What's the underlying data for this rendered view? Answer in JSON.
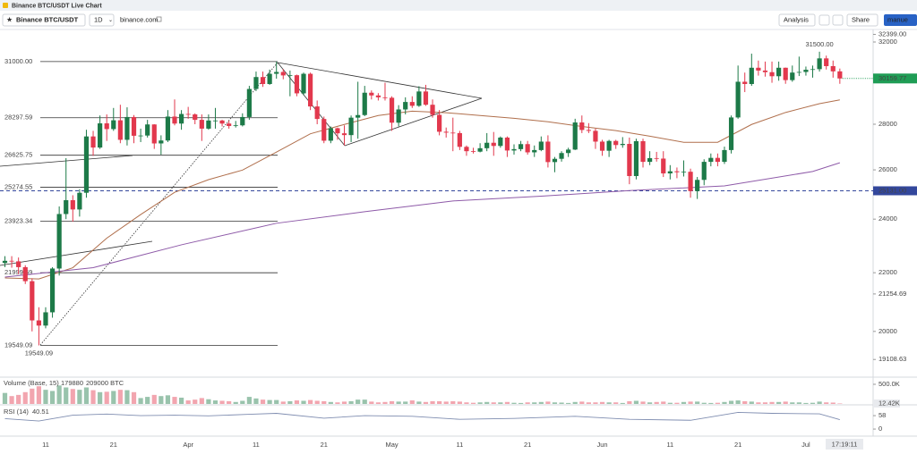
{
  "window_title": "Binance BTC/USDT Live Chart",
  "toolbar": {
    "symbol": "Binance BTC/USDT",
    "interval": "1D",
    "source": "binance.com",
    "analysis": "Analysis",
    "share": "Share",
    "user": "manue"
  },
  "chart_data": {
    "type": "candlestick",
    "categories": [
      null,
      null,
      null,
      null,
      null,
      null,
      "11",
      null,
      null,
      null,
      null,
      null,
      null,
      null,
      null,
      null,
      "21",
      null,
      null,
      null,
      null,
      null,
      null,
      null,
      null,
      null,
      null,
      "Apr",
      null,
      null,
      null,
      null,
      null,
      null,
      null,
      null,
      null,
      "11",
      null,
      null,
      null,
      null,
      null,
      null,
      null,
      null,
      null,
      "21",
      null,
      null,
      null,
      null,
      null,
      null,
      null,
      null,
      null,
      "May",
      null,
      null,
      null,
      null,
      null,
      null,
      null,
      null,
      null,
      "11",
      null,
      null,
      null,
      null,
      null,
      null,
      null,
      null,
      null,
      "21",
      null,
      null,
      null,
      null,
      null,
      null,
      null,
      null,
      null,
      null,
      "Jun",
      null,
      null,
      null,
      null,
      null,
      null,
      null,
      null,
      null,
      "11",
      null,
      null,
      null,
      null,
      null,
      null,
      null,
      null,
      null,
      "21",
      null,
      null,
      null,
      null,
      null,
      null,
      null,
      null,
      null,
      "Jul",
      null,
      null,
      null,
      null,
      null
    ],
    "open": [
      22350,
      22430,
      22410,
      22200,
      21700,
      20360,
      20190,
      20630,
      22150,
      24200,
      24750,
      24380,
      25050,
      27450,
      26960,
      28040,
      27780,
      28180,
      27300,
      28330,
      27480,
      27490,
      27990,
      27140,
      27270,
      28350,
      28030,
      28470,
      28450,
      28200,
      27800,
      28170,
      28170,
      28030,
      27920,
      27950,
      28330,
      29650,
      30230,
      29890,
      30390,
      30480,
      30310,
      30320,
      29440,
      30390,
      28820,
      28240,
      27260,
      27820,
      27590,
      27510,
      28300,
      28420,
      29470,
      29340,
      29250,
      29230,
      28070,
      28680,
      29030,
      28850,
      29530,
      28900,
      28430,
      27660,
      27620,
      27600,
      26990,
      26800,
      26780,
      26930,
      27170,
      27030,
      27400,
      26830,
      26890,
      27110,
      26750,
      26850,
      27220,
      26330,
      26470,
      26720,
      26870,
      28080,
      27740,
      27700,
      27220,
      26820,
      27250,
      27070,
      27120,
      25740,
      27240,
      26340,
      26500,
      26480,
      25850,
      25940,
      25900,
      25920,
      25120,
      25580,
      26340,
      26510,
      26340,
      26850,
      28310,
      30000,
      29890,
      30690,
      30550,
      30470,
      30270,
      30690,
      30080,
      30450,
      30480,
      30590,
      30620,
      31160,
      30770,
      30510
    ],
    "high": [
      22600,
      22600,
      22550,
      22270,
      21800,
      20800,
      20800,
      22200,
      24500,
      26500,
      24950,
      25200,
      27750,
      27700,
      28400,
      28450,
      28750,
      28900,
      28780,
      28420,
      27800,
      28200,
      28000,
      27500,
      28650,
      29150,
      28650,
      28800,
      28500,
      28450,
      28450,
      28750,
      28200,
      28150,
      28150,
      28500,
      29800,
      30500,
      30500,
      30600,
      31000,
      30620,
      30550,
      30350,
      30450,
      30450,
      29100,
      28350,
      27900,
      27850,
      27950,
      28400,
      30000,
      29800,
      29580,
      29450,
      29950,
      29300,
      28880,
      29250,
      29300,
      29780,
      29850,
      29150,
      28650,
      27850,
      28300,
      27700,
      27050,
      26950,
      27150,
      27600,
      27650,
      27450,
      27450,
      27100,
      27250,
      27250,
      27050,
      27450,
      27500,
      26550,
      26800,
      26950,
      28250,
      28400,
      28050,
      27800,
      27300,
      27300,
      27300,
      27420,
      27400,
      27350,
      27350,
      26800,
      26770,
      26800,
      26200,
      26100,
      26400,
      26050,
      25700,
      26450,
      26700,
      26700,
      27000,
      28400,
      30800,
      30450,
      31400,
      31050,
      31000,
      31000,
      31000,
      30700,
      30800,
      31250,
      30750,
      30800,
      31500,
      31300,
      31050,
      30650
    ],
    "low": [
      22200,
      22180,
      21950,
      21600,
      20000,
      19549.09,
      20100,
      20450,
      21900,
      24000,
      23900,
      24100,
      24850,
      26600,
      26900,
      27250,
      27700,
      27150,
      27050,
      27150,
      27200,
      27400,
      26900,
      26650,
      27200,
      27950,
      27750,
      28250,
      28000,
      27250,
      27750,
      27800,
      27900,
      27800,
      27850,
      27900,
      28200,
      29550,
      29750,
      29850,
      30150,
      30120,
      29300,
      29300,
      29350,
      28650,
      28000,
      27150,
      27150,
      27300,
      27050,
      27200,
      27350,
      28370,
      29150,
      29100,
      29100,
      27700,
      27900,
      28450,
      28750,
      28800,
      28850,
      28300,
      27500,
      27400,
      26800,
      26850,
      26600,
      26700,
      26750,
      26800,
      26600,
      26950,
      26550,
      26650,
      26800,
      26650,
      26550,
      26800,
      26100,
      25900,
      26350,
      26550,
      26850,
      27600,
      27600,
      26900,
      26600,
      26550,
      26900,
      26950,
      25400,
      25600,
      26100,
      26200,
      26350,
      25700,
      25600,
      25650,
      25720,
      24850,
      24800,
      25360,
      26150,
      26150,
      26250,
      26700,
      28250,
      29500,
      29800,
      30300,
      30250,
      29950,
      30050,
      29900,
      30000,
      30280,
      30300,
      30200,
      30500,
      30600,
      30200,
      29900
    ],
    "close": [
      22430,
      22410,
      22200,
      21700,
      20360,
      20190,
      20630,
      22150,
      24200,
      24750,
      24380,
      25050,
      27450,
      26960,
      28040,
      27780,
      28180,
      27300,
      28330,
      27480,
      27490,
      27990,
      27140,
      27270,
      28350,
      28030,
      28470,
      28450,
      28200,
      27800,
      28170,
      28170,
      28030,
      27920,
      27950,
      28330,
      29650,
      30230,
      29890,
      30390,
      30480,
      30310,
      30320,
      29440,
      30390,
      28820,
      28240,
      27260,
      27820,
      27590,
      27510,
      28300,
      28420,
      29470,
      29340,
      29250,
      29230,
      28070,
      28680,
      29030,
      28850,
      29530,
      28900,
      28430,
      27660,
      27620,
      27600,
      26990,
      26800,
      26780,
      26930,
      27170,
      27030,
      27400,
      26830,
      26890,
      27110,
      26750,
      26850,
      27220,
      26330,
      26470,
      26720,
      26870,
      28080,
      27740,
      27700,
      27220,
      26820,
      27250,
      27070,
      27120,
      25740,
      27240,
      26340,
      26500,
      26480,
      25850,
      25940,
      25900,
      25920,
      25120,
      25580,
      26340,
      26510,
      26340,
      26850,
      28310,
      30000,
      29890,
      30690,
      30550,
      30470,
      30270,
      30690,
      30080,
      30450,
      30480,
      30590,
      30620,
      31160,
      30770,
      30510,
      30159.77
    ],
    "up_color": "#1d7a48",
    "down_color": "#e2384d",
    "ylim": [
      18622,
      32657
    ],
    "log_scale": true,
    "yticks": [
      32000,
      28000,
      26000,
      24000,
      22000,
      20000
    ],
    "grid": false,
    "last_price": {
      "value": 30159.77,
      "label": "30159.77",
      "color": "#1f9d55"
    },
    "axis_labels": [
      {
        "value": 32399,
        "label": "32399.00"
      },
      {
        "value": 21254.69,
        "label": "21254.69"
      },
      {
        "value": 19108.63,
        "label": "19108.63"
      }
    ],
    "support": {
      "value": 25131,
      "label": "25131.00",
      "color": "#33479c"
    },
    "fib_levels": [
      {
        "value": 31000,
        "label": "31000.00"
      },
      {
        "value": 28297.59,
        "label": "28297.59"
      },
      {
        "value": 26625.75,
        "label": "26625.75"
      },
      {
        "value": 25274.55,
        "label": "25274.55"
      },
      {
        "value": 23923.34,
        "label": "23923.34"
      },
      {
        "value": 21999.59,
        "label": "21999.59"
      },
      {
        "value": 19549.09,
        "label": "19549.09"
      }
    ],
    "high_label": {
      "value": 31500,
      "label": "31500.00"
    },
    "low_label": {
      "value": 19549.09,
      "label": "19549.09"
    },
    "moving_averages": [
      {
        "color": "#b06f4c",
        "x": [
          0,
          5,
          10,
          15,
          20,
          25,
          30,
          35,
          40,
          45,
          50,
          55,
          60,
          65,
          70,
          75,
          80,
          85,
          90,
          95,
          100,
          105,
          110,
          115,
          120,
          123
        ],
        "values": [
          21815,
          21780,
          22180,
          23270,
          24180,
          25070,
          25590,
          25990,
          26760,
          27570,
          27990,
          28400,
          28600,
          28530,
          28400,
          28270,
          28110,
          27900,
          27710,
          27460,
          27190,
          27190,
          27990,
          28540,
          28950,
          29130
        ]
      },
      {
        "color": "#8e5aa8",
        "x": [
          0,
          13,
          26,
          40,
          53,
          66,
          79,
          92,
          106,
          119,
          123
        ],
        "values": [
          21845,
          22180,
          23020,
          23840,
          24290,
          24720,
          24910,
          25140,
          25330,
          25930,
          26300
        ]
      }
    ],
    "countdown": "17:19:11",
    "volume": {
      "title": "Volume (Base, 15)",
      "readouts": [
        "179880",
        "209000 BTC"
      ],
      "values": [
        280000,
        200000,
        230000,
        300000,
        390000,
        450000,
        360000,
        330000,
        470000,
        420000,
        380000,
        360000,
        420000,
        350000,
        300000,
        310000,
        330000,
        360000,
        350000,
        300000,
        150000,
        180000,
        230000,
        200000,
        220000,
        180000,
        160000,
        90000,
        110000,
        150000,
        120000,
        90000,
        80000,
        70000,
        50000,
        80000,
        180000,
        140000,
        110000,
        100000,
        100000,
        60000,
        70000,
        90000,
        80000,
        100000,
        80000,
        70000,
        50000,
        40000,
        60000,
        70000,
        110000,
        110000,
        60000,
        40000,
        50000,
        70000,
        60000,
        60000,
        90000,
        60000,
        50000,
        70000,
        70000,
        60000,
        70000,
        60000,
        40000,
        30000,
        40000,
        50000,
        40000,
        40000,
        50000,
        30000,
        25000,
        40000,
        40000,
        50000,
        60000,
        40000,
        35000,
        25000,
        50000,
        60000,
        40000,
        40000,
        50000,
        40000,
        40000,
        25000,
        70000,
        80000,
        60000,
        40000,
        50000,
        60000,
        30000,
        30000,
        50000,
        60000,
        60000,
        30000,
        25000,
        30000,
        50000,
        80000,
        90000,
        70000,
        60000,
        40000,
        40000,
        50000,
        50000,
        60000,
        40000,
        40000,
        25000,
        30000,
        60000,
        40000,
        35000,
        12420
      ],
      "ylim": [
        0,
        636000
      ],
      "yticks": [
        {
          "value": 500000,
          "label": "500.0K"
        }
      ],
      "last_label": {
        "value": 12420,
        "label": "12.42K"
      }
    },
    "rsi": {
      "title": "RSI (14)",
      "readout": "40.51",
      "color": "#7f8db0",
      "x": [
        0,
        5,
        10,
        15,
        20,
        25,
        30,
        36,
        40,
        47,
        53,
        60,
        67,
        75,
        84,
        92,
        101,
        108,
        113,
        120,
        123
      ],
      "values": [
        45,
        35,
        60,
        65,
        58,
        60,
        57,
        64,
        68,
        47,
        58,
        55,
        42,
        46,
        55,
        42,
        38,
        72,
        68,
        66,
        40.51
      ],
      "ylim": [
        -19,
        97
      ],
      "yticks": [
        58,
        0
      ]
    }
  }
}
